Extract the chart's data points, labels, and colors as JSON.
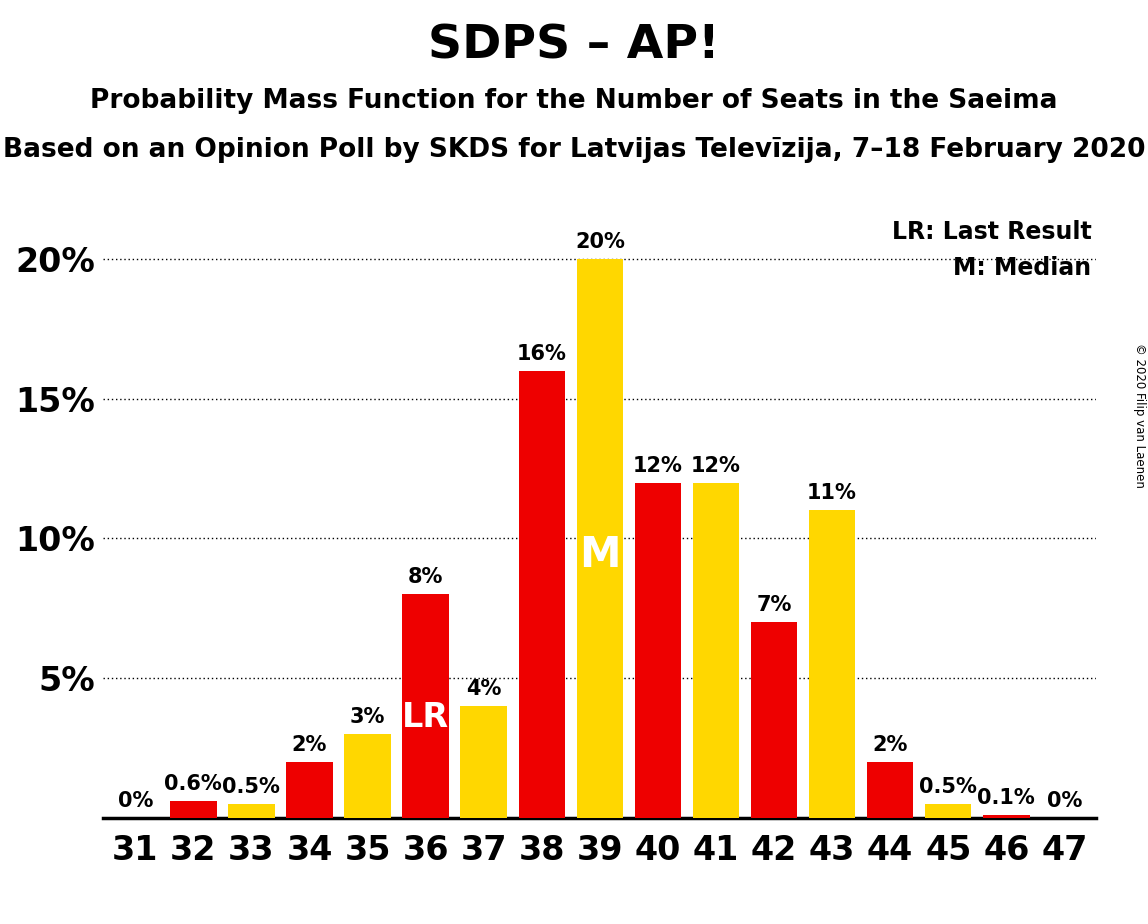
{
  "title": "SDPS – AP!",
  "subtitle1": "Probability Mass Function for the Number of Seats in the Saeima",
  "subtitle2": "Based on an Opinion Poll by SKDS for Latvijas Televīzija, 7–18 February 2020",
  "copyright": "© 2020 Filip van Laenen",
  "legend_lr": "LR: Last Result",
  "legend_m": "M: Median",
  "seats": [
    31,
    32,
    33,
    34,
    35,
    36,
    37,
    38,
    39,
    40,
    41,
    42,
    43,
    44,
    45,
    46,
    47
  ],
  "red_values": [
    0.0,
    0.6,
    0.0,
    2.0,
    0.0,
    8.0,
    0.0,
    16.0,
    0.0,
    12.0,
    0.0,
    7.0,
    0.0,
    2.0,
    0.0,
    0.1,
    0.0
  ],
  "yellow_values": [
    0.0,
    0.0,
    0.5,
    0.0,
    3.0,
    0.0,
    4.0,
    0.0,
    20.0,
    0.0,
    12.0,
    0.0,
    11.0,
    0.0,
    0.5,
    0.0,
    0.0
  ],
  "red_labels": [
    "0%",
    "0.6%",
    "",
    "2%",
    "",
    "8%",
    "",
    "16%",
    "",
    "12%",
    "",
    "7%",
    "",
    "2%",
    "",
    "0.1%",
    "0%"
  ],
  "yellow_labels": [
    "",
    "",
    "0.5%",
    "",
    "3%",
    "",
    "4%",
    "",
    "20%",
    "",
    "12%",
    "",
    "11%",
    "",
    "0.5%",
    "",
    ""
  ],
  "lr_seat": 36,
  "median_seat": 39,
  "bar_color_red": "#EE0000",
  "bar_color_yellow": "#FFD700",
  "background_color": "#FFFFFF",
  "ylim": [
    0,
    21.5
  ],
  "yticks": [
    5,
    10,
    15,
    20
  ],
  "ytick_labels": [
    "5%",
    "10%",
    "15%",
    "20%"
  ],
  "title_fontsize": 34,
  "subtitle_fontsize": 19,
  "axis_fontsize": 24,
  "label_fontsize": 15,
  "lr_fontsize": 24,
  "m_fontsize": 30,
  "legend_fontsize": 17
}
